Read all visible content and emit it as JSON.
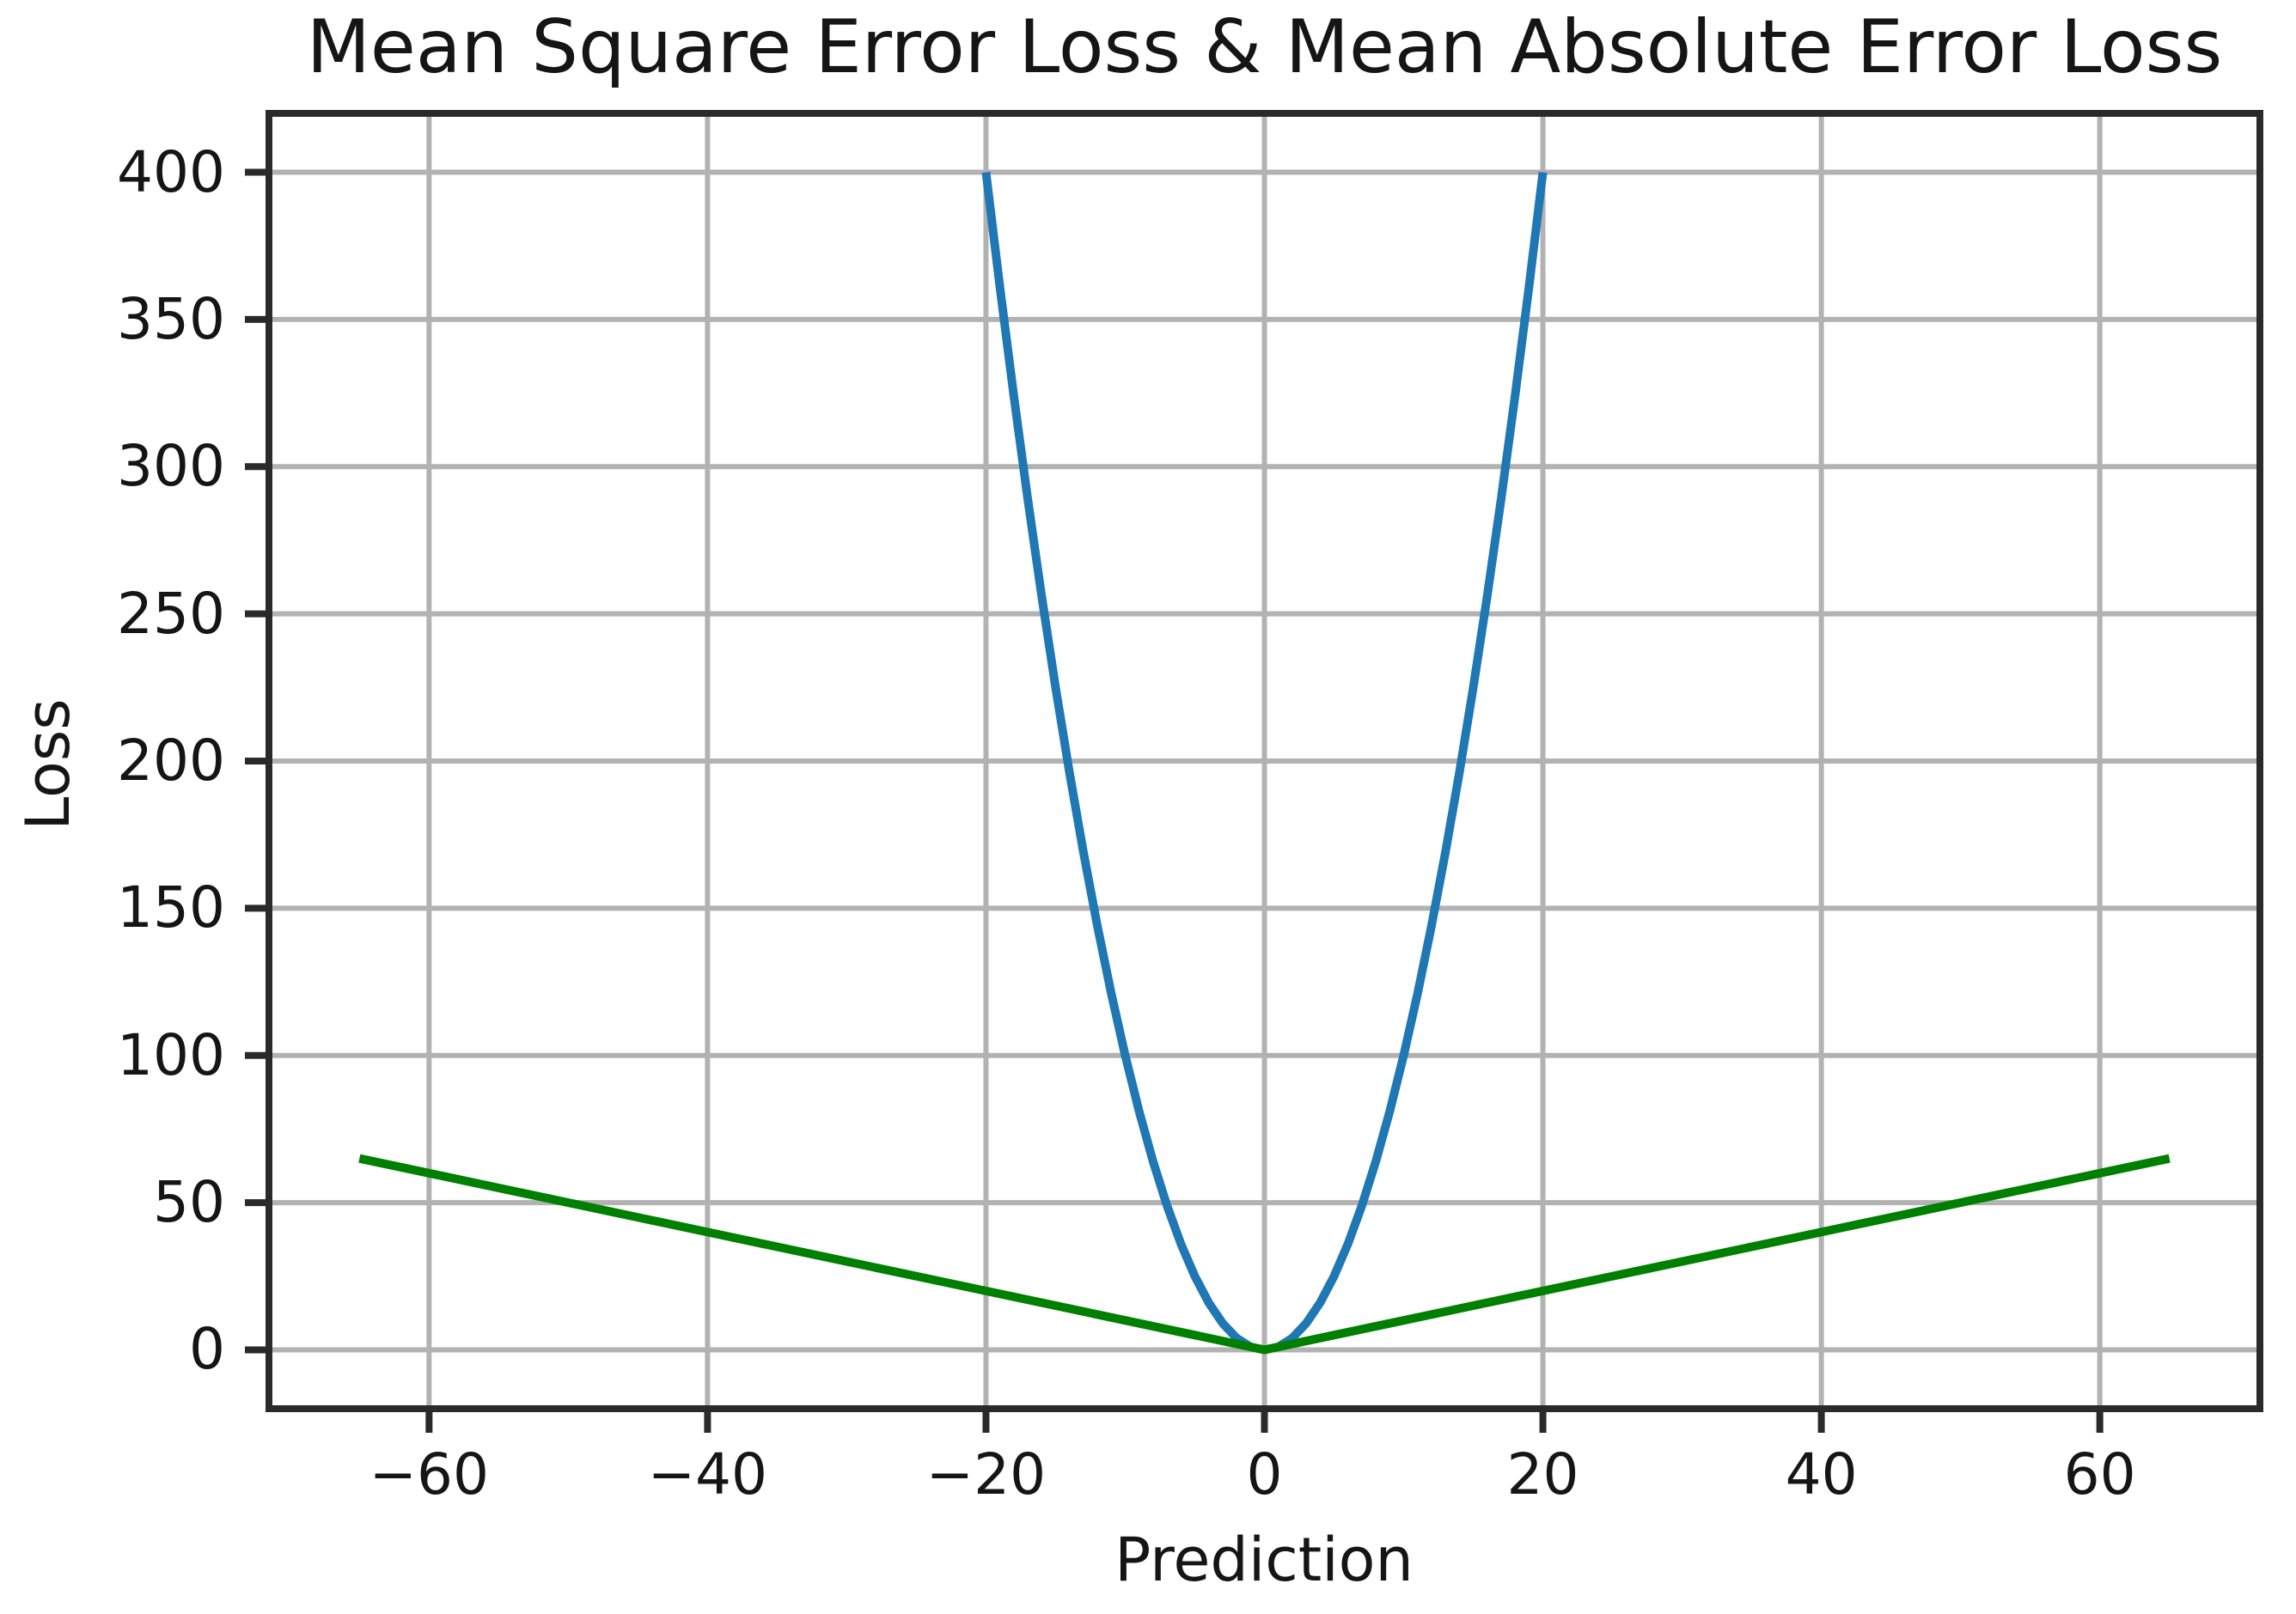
{
  "figure": {
    "background": "#ffffff",
    "text_color": "#151515"
  },
  "chart_data": {
    "type": "line",
    "title": "Mean Square Error Loss & Mean Absolute Error Loss",
    "xlabel": "Prediction",
    "ylabel": "Loss",
    "xlim": [
      -71.5,
      71.5
    ],
    "ylim": [
      -20,
      420
    ],
    "xticks": [
      -60,
      -40,
      -20,
      0,
      20,
      40,
      60
    ],
    "yticks": [
      0,
      50,
      100,
      150,
      200,
      250,
      300,
      350,
      400
    ],
    "grid": true,
    "grid_color": "#b2b2b2",
    "spine_color": "#2a2a2a",
    "legend": null,
    "series": [
      {
        "name": "Mean Square Error Loss",
        "color": "#1f77b4",
        "line_width": 10,
        "x": [
          -20,
          -19,
          -18,
          -17,
          -16,
          -15,
          -14,
          -13,
          -12,
          -11,
          -10,
          -9,
          -8,
          -7,
          -6,
          -5,
          -4,
          -3,
          -2,
          -1,
          0,
          1,
          2,
          3,
          4,
          5,
          6,
          7,
          8,
          9,
          10,
          11,
          12,
          13,
          14,
          15,
          16,
          17,
          18,
          19,
          20
        ],
        "y": [
          400,
          361,
          324,
          289,
          256,
          225,
          196,
          169,
          144,
          121,
          100,
          81,
          64,
          49,
          36,
          25,
          16,
          9,
          4,
          1,
          0,
          1,
          4,
          9,
          16,
          25,
          36,
          49,
          64,
          81,
          100,
          121,
          144,
          169,
          196,
          225,
          256,
          289,
          324,
          361,
          400
        ]
      },
      {
        "name": "Mean Absolute Error Loss",
        "color": "#008000",
        "line_width": 10,
        "x": [
          -65,
          -60,
          -55,
          -50,
          -45,
          -40,
          -35,
          -30,
          -25,
          -20,
          -15,
          -10,
          -5,
          0,
          5,
          10,
          15,
          20,
          25,
          30,
          35,
          40,
          45,
          50,
          55,
          60,
          65
        ],
        "y": [
          65,
          60,
          55,
          50,
          45,
          40,
          35,
          30,
          25,
          20,
          15,
          10,
          5,
          0,
          5,
          10,
          15,
          20,
          25,
          30,
          35,
          40,
          45,
          50,
          55,
          60,
          65
        ]
      }
    ]
  }
}
